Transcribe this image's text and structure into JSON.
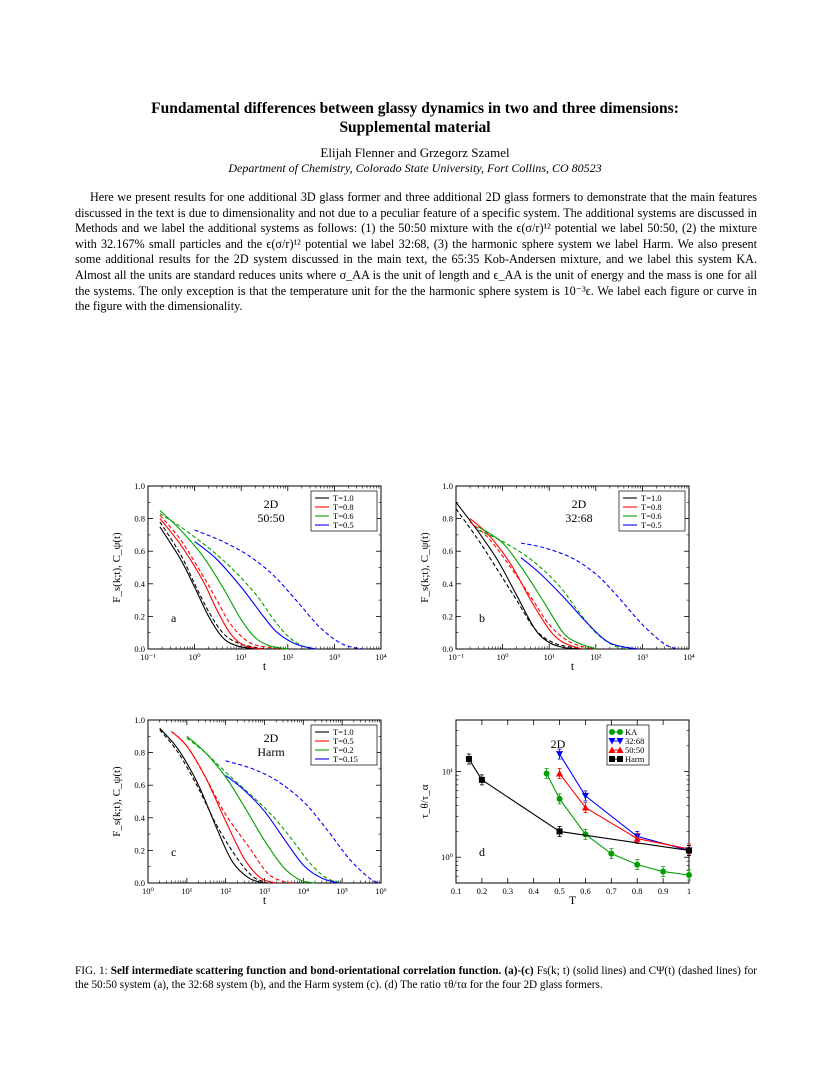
{
  "title_line1": "Fundamental differences between glassy dynamics in two and three dimensions:",
  "title_line2": "Supplemental material",
  "authors": "Elijah Flenner and Grzegorz Szamel",
  "affiliation": "Department of Chemistry, Colorado State University, Fort Collins, CO 80523",
  "abstract": "Here we present results for one additional 3D glass former and three additional 2D glass formers to demonstrate that the main features discussed in the text is due to dimensionality and not due to a peculiar feature of a specific system. The additional systems are discussed in Methods and we label the additional systems as follows: (1) the 50:50 mixture with the ϵ(σ/r)¹² potential we label 50:50, (2) the mixture with 32.167% small particles and the ϵ(σ/r)¹² potential we label 32:68, (3) the harmonic sphere system we label Harm. We also present some additional results for the 2D system discussed in the main text, the 65:35 Kob-Andersen mixture, and we label this system KA. Almost all the units are standard reduces units where σ_AA is the unit of length and ϵ_AA is the unit of energy and the mass is one for all the systems. The only exception is that the temperature unit for the the harmonic sphere system is 10⁻³ϵ. We label each figure or curve in the figure with the dimensionality.",
  "caption": {
    "label": "FIG. 1:",
    "bold": "Self intermediate scattering function and bond-orientational correlation function. (a)-(c)",
    "rest": " Fs(k; t) (solid lines) and CΨ(t) (dashed lines) for the 50:50 system (a), the 32:68 system (b), and the Harm system (c). (d) The ratio τθ/τα for the four 2D glass formers."
  },
  "colors": {
    "black": "#000000",
    "red": "#ff0000",
    "green": "#00a000",
    "blue": "#0000ff"
  },
  "chart_data": [
    {
      "panel": "a",
      "type": "line",
      "xscale": "log",
      "xlim": [
        0.1,
        10000
      ],
      "ylim": [
        0,
        1
      ],
      "xlabel": "t",
      "ylabel": "F_s(k;t), C_ψ(t)",
      "xticks": [
        "10⁻¹",
        "10⁰",
        "10¹",
        "10²",
        "10³",
        "10⁴"
      ],
      "yticks": [
        "0.0",
        "0.2",
        "0.4",
        "0.6",
        "0.8",
        "1.0"
      ],
      "annot": [
        "2D",
        "50:50"
      ],
      "legend": [
        "T=1.0",
        "T=0.8",
        "T=0.6",
        "T=0.5"
      ],
      "series": [
        {
          "name": "T=1.0",
          "color": "black",
          "style": "solid",
          "x": [
            0.18,
            0.5,
            1.0,
            2.0,
            4.0,
            8.0,
            20
          ],
          "y": [
            0.75,
            0.55,
            0.38,
            0.2,
            0.07,
            0.02,
            0
          ]
        },
        {
          "name": "T=1.0",
          "color": "black",
          "style": "dashed",
          "x": [
            0.18,
            0.5,
            1.0,
            2.0,
            4.0,
            8.0,
            20,
            40
          ],
          "y": [
            0.78,
            0.58,
            0.4,
            0.23,
            0.1,
            0.04,
            0.01,
            0
          ]
        },
        {
          "name": "T=0.8",
          "color": "red",
          "style": "solid",
          "x": [
            0.18,
            0.5,
            1.5,
            3.0,
            6.0,
            12,
            30
          ],
          "y": [
            0.8,
            0.64,
            0.42,
            0.24,
            0.09,
            0.02,
            0
          ]
        },
        {
          "name": "T=0.8",
          "color": "red",
          "style": "dashed",
          "x": [
            0.18,
            0.5,
            1.5,
            3.0,
            6.0,
            15,
            40,
            80
          ],
          "y": [
            0.82,
            0.67,
            0.45,
            0.3,
            0.15,
            0.04,
            0.01,
            0
          ]
        },
        {
          "name": "T=0.6",
          "color": "green",
          "style": "solid",
          "x": [
            0.18,
            0.5,
            1.5,
            4.0,
            10,
            20,
            40,
            100
          ],
          "y": [
            0.85,
            0.73,
            0.57,
            0.38,
            0.18,
            0.07,
            0.02,
            0
          ]
        },
        {
          "name": "T=0.6",
          "color": "green",
          "style": "dashed",
          "x": [
            0.18,
            0.5,
            2.0,
            6.0,
            20,
            50,
            100,
            200,
            400
          ],
          "y": [
            0.83,
            0.75,
            0.62,
            0.5,
            0.34,
            0.18,
            0.08,
            0.02,
            0
          ]
        },
        {
          "name": "T=0.5",
          "color": "blue",
          "style": "solid",
          "x": [
            1.0,
            3.0,
            10,
            30,
            60,
            150,
            400
          ],
          "y": [
            0.66,
            0.55,
            0.38,
            0.2,
            0.1,
            0.03,
            0
          ]
        },
        {
          "name": "T=0.5",
          "color": "blue",
          "style": "dashed",
          "x": [
            1.0,
            4.0,
            15,
            50,
            150,
            500,
            1500,
            4000
          ],
          "y": [
            0.73,
            0.66,
            0.57,
            0.45,
            0.3,
            0.13,
            0.03,
            0
          ]
        }
      ]
    },
    {
      "panel": "b",
      "type": "line",
      "xscale": "log",
      "xlim": [
        0.1,
        10000
      ],
      "ylim": [
        0,
        1
      ],
      "xlabel": "t",
      "ylabel": "F_s(k;t), C_ψ(t)",
      "xticks": [
        "10⁻¹",
        "10⁰",
        "10¹",
        "10²",
        "10³",
        "10⁴"
      ],
      "yticks": [
        "0.0",
        "0.2",
        "0.4",
        "0.6",
        "0.8",
        "1.0"
      ],
      "annot": [
        "2D",
        "32:68"
      ],
      "legend": [
        "T=1.0",
        "T=0.8",
        "T=0.6",
        "T=0.5"
      ],
      "series": [
        {
          "name": "T=1.0",
          "color": "black",
          "style": "solid",
          "x": [
            0.1,
            0.3,
            0.8,
            2.0,
            5.0,
            10,
            20,
            40
          ],
          "y": [
            0.9,
            0.72,
            0.54,
            0.33,
            0.12,
            0.04,
            0.01,
            0
          ]
        },
        {
          "name": "T=1.0",
          "color": "black",
          "style": "dashed",
          "x": [
            0.1,
            0.3,
            0.8,
            2.0,
            5.0,
            12,
            30,
            50
          ],
          "y": [
            0.86,
            0.67,
            0.48,
            0.3,
            0.12,
            0.04,
            0.01,
            0
          ]
        },
        {
          "name": "T=0.8",
          "color": "red",
          "style": "solid",
          "x": [
            0.2,
            0.5,
            1.5,
            4.0,
            10,
            20,
            50
          ],
          "y": [
            0.8,
            0.7,
            0.52,
            0.3,
            0.12,
            0.04,
            0
          ]
        },
        {
          "name": "T=0.8",
          "color": "red",
          "style": "dashed",
          "x": [
            0.2,
            0.5,
            1.5,
            4.0,
            10,
            25,
            60,
            100
          ],
          "y": [
            0.78,
            0.68,
            0.5,
            0.32,
            0.15,
            0.05,
            0.01,
            0
          ]
        },
        {
          "name": "T=0.6",
          "color": "green",
          "style": "solid",
          "x": [
            0.3,
            1.0,
            3.0,
            8.0,
            20,
            40,
            100
          ],
          "y": [
            0.75,
            0.65,
            0.47,
            0.28,
            0.1,
            0.04,
            0
          ]
        },
        {
          "name": "T=0.6",
          "color": "green",
          "style": "dashed",
          "x": [
            0.3,
            1.0,
            4.0,
            15,
            40,
            100,
            250,
            500
          ],
          "y": [
            0.73,
            0.66,
            0.55,
            0.4,
            0.24,
            0.1,
            0.02,
            0
          ]
        },
        {
          "name": "T=0.5",
          "color": "blue",
          "style": "solid",
          "x": [
            2.5,
            6.0,
            20,
            60,
            150,
            300,
            800
          ],
          "y": [
            0.56,
            0.47,
            0.32,
            0.17,
            0.06,
            0.02,
            0
          ]
        },
        {
          "name": "T=0.5",
          "color": "blue",
          "style": "dashed",
          "x": [
            2.5,
            8.0,
            30,
            100,
            300,
            1000,
            3000,
            6000
          ],
          "y": [
            0.65,
            0.62,
            0.56,
            0.46,
            0.32,
            0.15,
            0.03,
            0
          ]
        }
      ]
    },
    {
      "panel": "c",
      "type": "line",
      "xscale": "log",
      "xlim": [
        1,
        1000000
      ],
      "ylim": [
        0,
        1
      ],
      "xlabel": "t",
      "ylabel": "F_s(k;t), C_ψ(t)",
      "xticks": [
        "10⁰",
        "10¹",
        "10²",
        "10³",
        "10⁴",
        "10⁵",
        "10⁶"
      ],
      "yticks": [
        "0.0",
        "0.2",
        "0.4",
        "0.6",
        "0.8",
        "1.0"
      ],
      "annot": [
        "2D",
        "Harm"
      ],
      "legend": [
        "T=1.0",
        "T=0.5",
        "T=0.2",
        "T=0.15"
      ],
      "series": [
        {
          "name": "T=1.0",
          "color": "black",
          "style": "solid",
          "x": [
            2,
            6,
            20,
            60,
            150,
            400,
            1000
          ],
          "y": [
            0.95,
            0.82,
            0.6,
            0.33,
            0.13,
            0.03,
            0
          ]
        },
        {
          "name": "T=1.0",
          "color": "black",
          "style": "dashed",
          "x": [
            2,
            6,
            20,
            60,
            200,
            500,
            1200
          ],
          "y": [
            0.94,
            0.8,
            0.58,
            0.35,
            0.15,
            0.04,
            0
          ]
        },
        {
          "name": "T=0.5",
          "color": "red",
          "style": "solid",
          "x": [
            4,
            10,
            30,
            100,
            300,
            800,
            2000
          ],
          "y": [
            0.93,
            0.84,
            0.65,
            0.38,
            0.15,
            0.03,
            0
          ]
        },
        {
          "name": "T=0.5",
          "color": "red",
          "style": "dashed",
          "x": [
            4,
            10,
            30,
            100,
            400,
            1200,
            3000,
            6000
          ],
          "y": [
            0.93,
            0.84,
            0.65,
            0.42,
            0.22,
            0.06,
            0.01,
            0
          ]
        },
        {
          "name": "T=0.2",
          "color": "green",
          "style": "solid",
          "x": [
            10,
            30,
            100,
            300,
            1000,
            3000,
            8000,
            20000
          ],
          "y": [
            0.9,
            0.8,
            0.65,
            0.47,
            0.26,
            0.1,
            0.02,
            0
          ]
        },
        {
          "name": "T=0.2",
          "color": "green",
          "style": "dashed",
          "x": [
            10,
            30,
            100,
            400,
            1500,
            5000,
            15000,
            40000,
            100000
          ],
          "y": [
            0.89,
            0.8,
            0.68,
            0.55,
            0.42,
            0.27,
            0.12,
            0.03,
            0
          ]
        },
        {
          "name": "T=0.15",
          "color": "blue",
          "style": "solid",
          "x": [
            100,
            300,
            1000,
            3000,
            10000,
            30000,
            80000
          ],
          "y": [
            0.66,
            0.57,
            0.44,
            0.28,
            0.11,
            0.03,
            0
          ]
        },
        {
          "name": "T=0.15",
          "color": "blue",
          "style": "dashed",
          "x": [
            100,
            500,
            2000,
            10000,
            40000,
            150000,
            500000,
            900000
          ],
          "y": [
            0.75,
            0.7,
            0.63,
            0.5,
            0.33,
            0.15,
            0.03,
            0
          ]
        }
      ]
    },
    {
      "panel": "d",
      "type": "scatter",
      "xscale": "linear",
      "yscale": "log",
      "xlim": [
        0.1,
        1.0
      ],
      "ylim": [
        0.5,
        40
      ],
      "xlabel": "T",
      "ylabel": "τ_θ/τ_α",
      "xticks": [
        "0.1",
        "0.2",
        "0.3",
        "0.4",
        "0.5",
        "0.6",
        "0.7",
        "0.8",
        "0.9",
        "1"
      ],
      "yticks": [
        "10⁰",
        "10¹"
      ],
      "annot": [
        "2D"
      ],
      "legend": [
        "KA",
        "32:68",
        "50:50",
        "Harm"
      ],
      "series": [
        {
          "name": "KA",
          "color": "green",
          "marker": "circle",
          "x": [
            0.45,
            0.5,
            0.6,
            0.7,
            0.8,
            0.9,
            1.0
          ],
          "y": [
            9.5,
            4.8,
            1.85,
            1.1,
            0.82,
            0.68,
            0.62
          ]
        },
        {
          "name": "32:68",
          "color": "blue",
          "marker": "triangle-down",
          "x": [
            0.5,
            0.6,
            0.8,
            1.0
          ],
          "y": [
            16,
            5.2,
            1.75,
            1.2
          ]
        },
        {
          "name": "50:50",
          "color": "red",
          "marker": "triangle-up",
          "x": [
            0.5,
            0.6,
            0.8,
            1.0
          ],
          "y": [
            9.5,
            3.8,
            1.65,
            1.25
          ]
        },
        {
          "name": "Harm",
          "color": "black",
          "marker": "square",
          "x": [
            0.15,
            0.2,
            0.5,
            1.0
          ],
          "y": [
            14,
            8,
            2,
            1.2
          ]
        }
      ]
    }
  ]
}
